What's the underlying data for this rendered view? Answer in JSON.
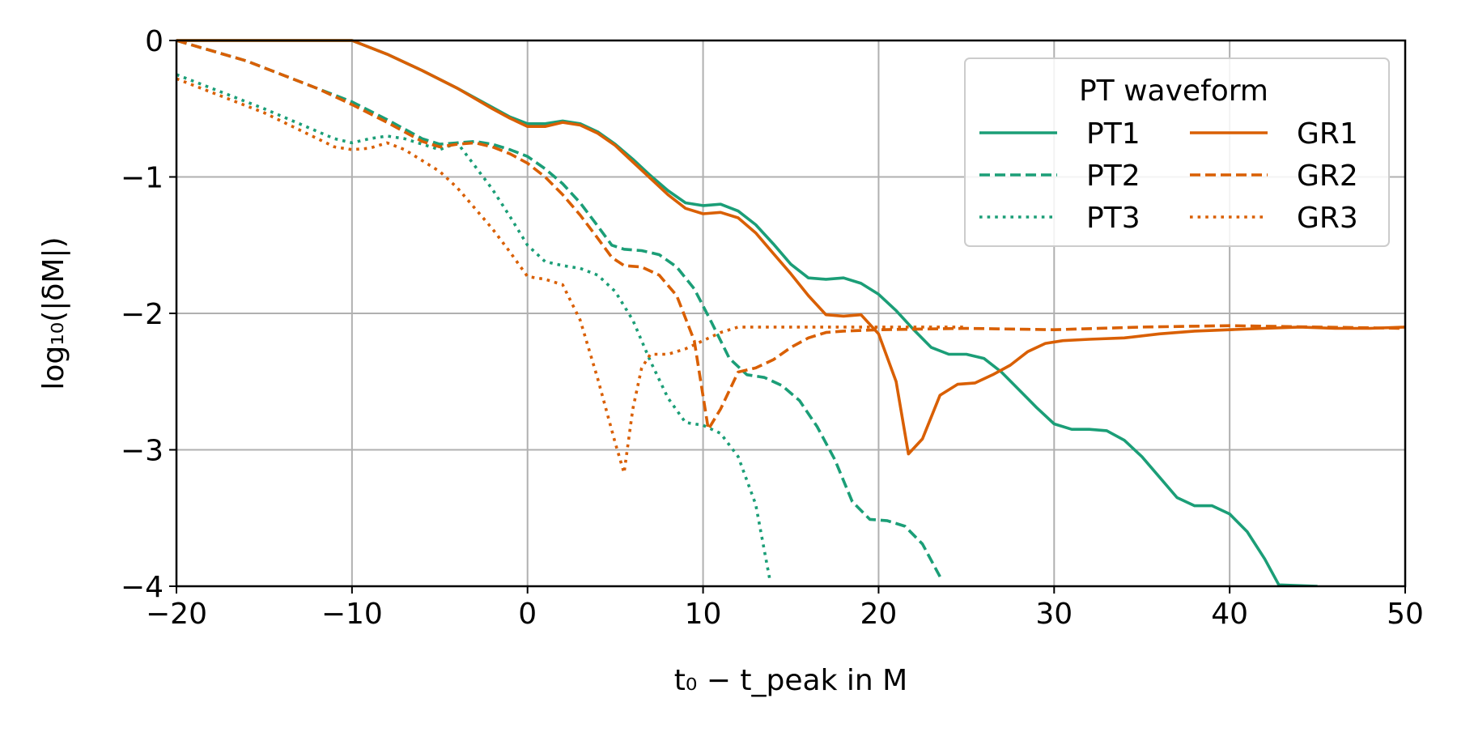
{
  "chart_data": {
    "type": "line",
    "title": "",
    "xlabel": "t₀ − t_peak in M",
    "ylabel": "log₁₀(|δM|)",
    "xlim": [
      -20,
      50
    ],
    "ylim": [
      -4,
      0
    ],
    "xticks": [
      -20,
      -10,
      0,
      10,
      20,
      30,
      40,
      50
    ],
    "yticks": [
      0,
      -1,
      -2,
      -3,
      -4
    ],
    "xtick_labels": [
      "−20",
      "−10",
      "0",
      "10",
      "20",
      "30",
      "40",
      "50"
    ],
    "ytick_labels": [
      "0",
      "−1",
      "−2",
      "−3",
      "−4"
    ],
    "grid": true,
    "legend": {
      "title": "PT waveform",
      "placement": "top-right",
      "columns": 2
    },
    "colors": {
      "pt": "#1b9e77",
      "gr": "#d95f02"
    },
    "series": [
      {
        "name": "PT1",
        "color": "#1b9e77",
        "style": "solid",
        "x": [
          -20,
          -15,
          -10,
          -8,
          -6,
          -4,
          -2,
          -1,
          0,
          1,
          2,
          3,
          4,
          5,
          6,
          7,
          8,
          9,
          10,
          11,
          12,
          13,
          14,
          15,
          16,
          17,
          18,
          19,
          20,
          21,
          22,
          23,
          24,
          25,
          26,
          27,
          28,
          29,
          30,
          31,
          32,
          33,
          34,
          35,
          36,
          37,
          38,
          39,
          40,
          41,
          42,
          42.8,
          45
        ],
        "y": [
          0.0,
          0.0,
          0.0,
          -0.1,
          -0.22,
          -0.35,
          -0.49,
          -0.56,
          -0.61,
          -0.61,
          -0.59,
          -0.61,
          -0.67,
          -0.76,
          -0.87,
          -0.99,
          -1.1,
          -1.19,
          -1.21,
          -1.2,
          -1.25,
          -1.35,
          -1.49,
          -1.64,
          -1.74,
          -1.75,
          -1.74,
          -1.78,
          -1.86,
          -1.98,
          -2.12,
          -2.25,
          -2.3,
          -2.3,
          -2.33,
          -2.43,
          -2.56,
          -2.69,
          -2.81,
          -2.85,
          -2.85,
          -2.86,
          -2.93,
          -3.05,
          -3.2,
          -3.35,
          -3.41,
          -3.41,
          -3.47,
          -3.6,
          -3.8,
          -3.99,
          -4.0
        ]
      },
      {
        "name": "PT2",
        "color": "#1b9e77",
        "style": "dashed",
        "x": [
          -20,
          -16,
          -12,
          -10,
          -8,
          -6,
          -5,
          -4,
          -3,
          -2,
          -1,
          0,
          1,
          2,
          3,
          4,
          4.8,
          5.5,
          6.5,
          7.5,
          8.5,
          9.5,
          10.5,
          11.5,
          12.5,
          13.5,
          14.5,
          15.5,
          16.5,
          17.5,
          18.5,
          19.5,
          20.5,
          21.5,
          22.5,
          23.5
        ],
        "y": [
          0.0,
          -0.15,
          -0.35,
          -0.45,
          -0.58,
          -0.72,
          -0.76,
          -0.75,
          -0.74,
          -0.76,
          -0.8,
          -0.85,
          -0.94,
          -1.05,
          -1.19,
          -1.36,
          -1.5,
          -1.53,
          -1.54,
          -1.57,
          -1.66,
          -1.82,
          -2.07,
          -2.33,
          -2.45,
          -2.47,
          -2.53,
          -2.64,
          -2.83,
          -3.07,
          -3.38,
          -3.51,
          -3.52,
          -3.56,
          -3.69,
          -3.93
        ]
      },
      {
        "name": "PT3",
        "color": "#1b9e77",
        "style": "dotted",
        "x": [
          -20,
          -15,
          -11,
          -10,
          -9,
          -8,
          -7,
          -6,
          -5,
          -4,
          -3,
          -2,
          -1,
          0,
          1,
          2,
          3,
          4,
          5,
          6,
          7,
          8,
          9,
          10,
          11,
          12,
          13,
          13.8
        ],
        "y": [
          -0.25,
          -0.5,
          -0.72,
          -0.75,
          -0.72,
          -0.7,
          -0.72,
          -0.76,
          -0.8,
          -0.75,
          -0.92,
          -1.09,
          -1.29,
          -1.5,
          -1.62,
          -1.65,
          -1.67,
          -1.72,
          -1.84,
          -2.05,
          -2.35,
          -2.62,
          -2.8,
          -2.82,
          -2.88,
          -3.05,
          -3.4,
          -3.95
        ]
      },
      {
        "name": "GR1",
        "color": "#d95f02",
        "style": "solid",
        "x": [
          -20,
          -15,
          -10,
          -8,
          -6,
          -4,
          -2,
          -1,
          0,
          1,
          2,
          3,
          4,
          5,
          6,
          7,
          8,
          9,
          10,
          11,
          12,
          13,
          14,
          15,
          16,
          17,
          18,
          19,
          20,
          21,
          21.7,
          22.5,
          23.5,
          24.5,
          25.5,
          26.5,
          27.5,
          28.5,
          29.5,
          30.5,
          32,
          34,
          36,
          38,
          40,
          42,
          44,
          46,
          48,
          50
        ],
        "y": [
          0.0,
          0.0,
          0.0,
          -0.1,
          -0.22,
          -0.35,
          -0.5,
          -0.57,
          -0.63,
          -0.63,
          -0.6,
          -0.62,
          -0.68,
          -0.77,
          -0.89,
          -1.01,
          -1.13,
          -1.23,
          -1.27,
          -1.26,
          -1.3,
          -1.41,
          -1.56,
          -1.71,
          -1.87,
          -2.01,
          -2.02,
          -2.01,
          -2.15,
          -2.5,
          -3.03,
          -2.92,
          -2.6,
          -2.52,
          -2.51,
          -2.45,
          -2.38,
          -2.28,
          -2.22,
          -2.2,
          -2.19,
          -2.18,
          -2.15,
          -2.13,
          -2.12,
          -2.11,
          -2.1,
          -2.11,
          -2.11,
          -2.1
        ]
      },
      {
        "name": "GR2",
        "color": "#d95f02",
        "style": "dashed",
        "x": [
          -20,
          -16,
          -12,
          -10,
          -8,
          -6,
          -5,
          -4,
          -3,
          -2,
          -1,
          0,
          1,
          2,
          3,
          4,
          4.8,
          5.5,
          6.5,
          7.5,
          8.5,
          9.5,
          10.3,
          11,
          12,
          13,
          14,
          15,
          16,
          17,
          18,
          20,
          25,
          30,
          35,
          40,
          45,
          50
        ],
        "y": [
          0.0,
          -0.15,
          -0.35,
          -0.47,
          -0.6,
          -0.74,
          -0.78,
          -0.76,
          -0.75,
          -0.78,
          -0.83,
          -0.9,
          -1.0,
          -1.13,
          -1.28,
          -1.45,
          -1.59,
          -1.65,
          -1.66,
          -1.72,
          -1.87,
          -2.2,
          -2.85,
          -2.7,
          -2.43,
          -2.4,
          -2.34,
          -2.25,
          -2.18,
          -2.14,
          -2.13,
          -2.12,
          -2.11,
          -2.12,
          -2.1,
          -2.09,
          -2.1,
          -2.11
        ]
      },
      {
        "name": "GR3",
        "color": "#d95f02",
        "style": "dotted",
        "x": [
          -20,
          -15,
          -11,
          -10,
          -9,
          -8,
          -7,
          -6,
          -5,
          -4,
          -3,
          -2,
          -1,
          0,
          1,
          2,
          3,
          4,
          5,
          5.5,
          6,
          6.5,
          7,
          8,
          9,
          10,
          11,
          12,
          13,
          15,
          20,
          25
        ],
        "y": [
          -0.28,
          -0.53,
          -0.78,
          -0.8,
          -0.79,
          -0.75,
          -0.8,
          -0.88,
          -0.96,
          -1.08,
          -1.23,
          -1.38,
          -1.55,
          -1.73,
          -1.75,
          -1.79,
          -2.05,
          -2.48,
          -2.95,
          -3.17,
          -2.7,
          -2.4,
          -2.3,
          -2.3,
          -2.26,
          -2.2,
          -2.14,
          -2.1,
          -2.1,
          -2.1,
          -2.1,
          -2.1
        ]
      }
    ]
  }
}
